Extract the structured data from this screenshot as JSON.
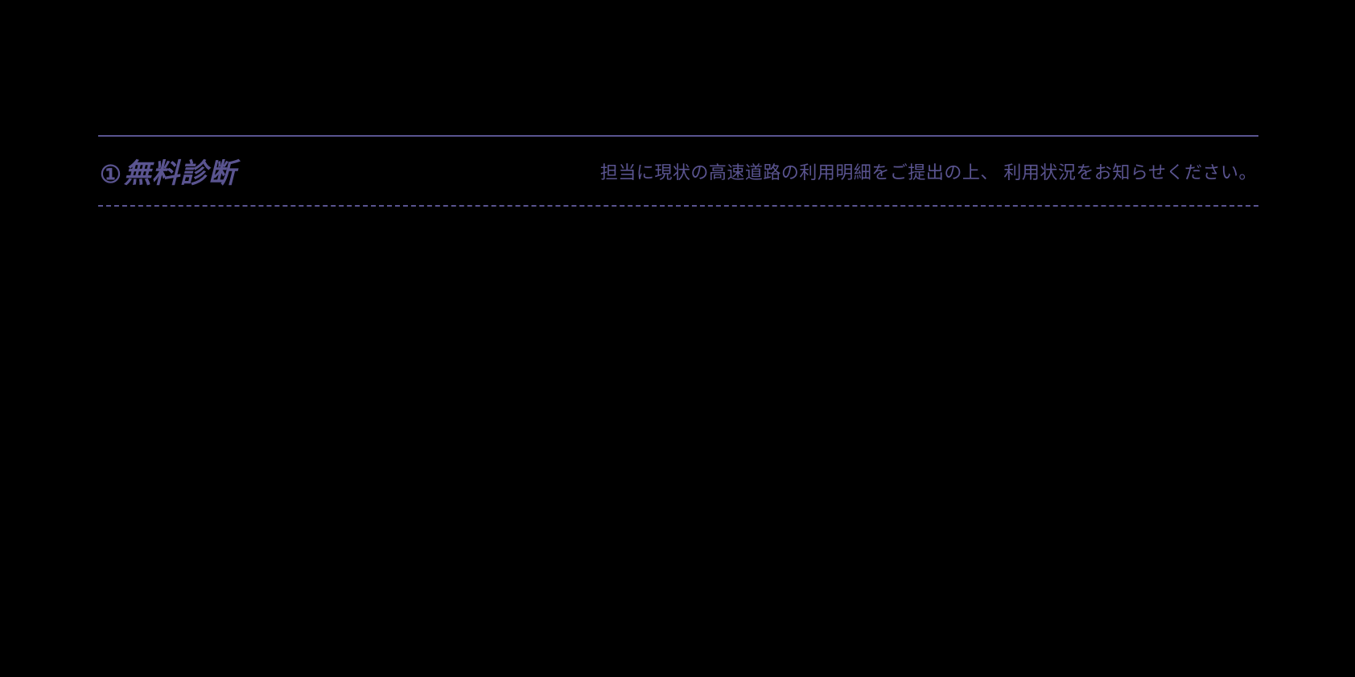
{
  "section": {
    "number": "①",
    "title": "無料診断",
    "description": "担当に現状の高速道路の利用明細をご提出の上、 利用状況をお知らせください。"
  },
  "colors": {
    "background": "#000000",
    "accent": "#5a5490",
    "border": "#5a5490"
  }
}
